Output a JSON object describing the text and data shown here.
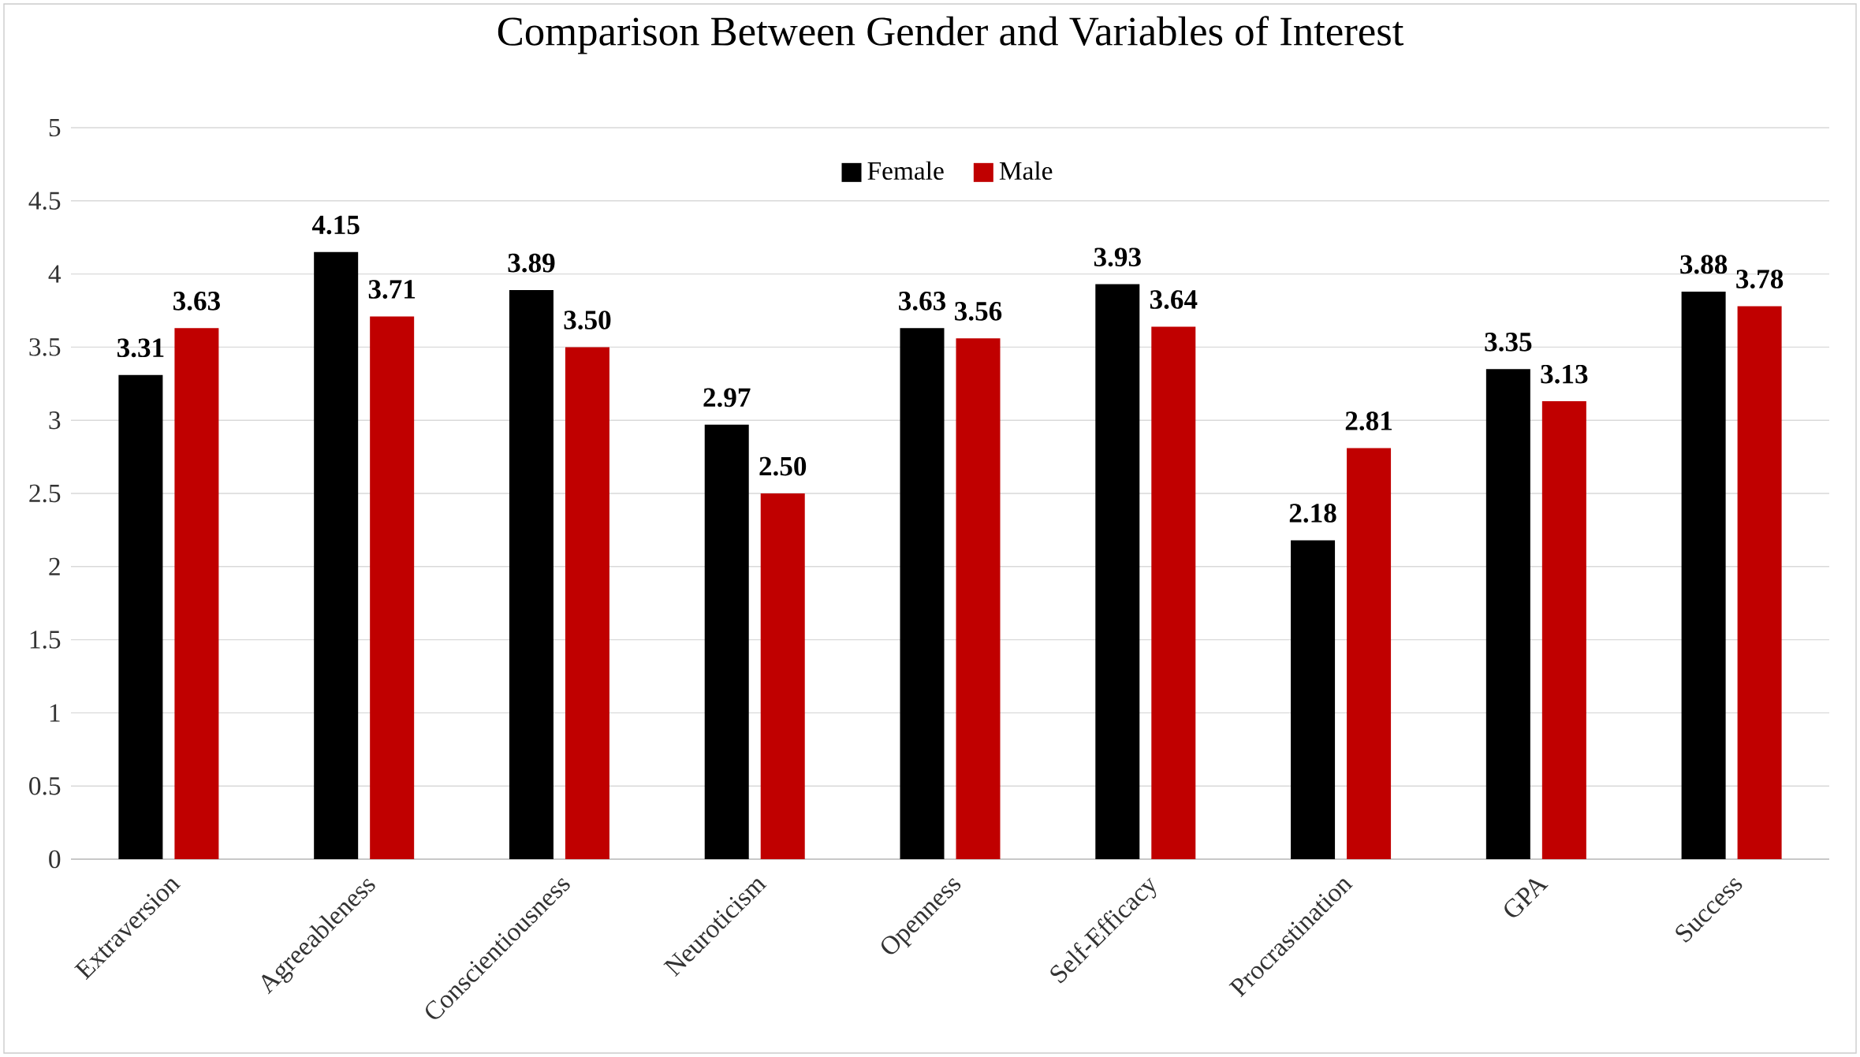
{
  "chart_data": {
    "type": "bar",
    "title": "Comparison Between Gender and Variables of Interest",
    "categories": [
      "Extraversion",
      "Agreeableness",
      "Conscientiousness",
      "Neuroticism",
      "Openness",
      "Self-Efficacy",
      "Procrastination",
      "GPA",
      "Success"
    ],
    "series": [
      {
        "name": "Female",
        "color": "#000000",
        "values": [
          3.31,
          4.15,
          3.89,
          2.97,
          3.63,
          3.93,
          2.18,
          3.35,
          3.88
        ],
        "value_labels": [
          "3.31",
          "4.15",
          "3.89",
          "2.97",
          "3.63",
          "3.93",
          "2.18",
          "3.35",
          "3.88"
        ]
      },
      {
        "name": "Male",
        "color": "#c00000",
        "values": [
          3.63,
          3.71,
          3.5,
          2.5,
          3.56,
          3.64,
          2.81,
          3.13,
          3.78
        ],
        "value_labels": [
          "3.63",
          "3.71",
          "3.50",
          "2.50",
          "3.56",
          "3.64",
          "2.81",
          "3.13",
          "3.78"
        ]
      }
    ],
    "ylim": [
      0,
      5
    ],
    "yticks": [
      0,
      0.5,
      1,
      1.5,
      2,
      2.5,
      3,
      3.5,
      4,
      4.5,
      5
    ],
    "grid": "y",
    "legend": "top"
  }
}
